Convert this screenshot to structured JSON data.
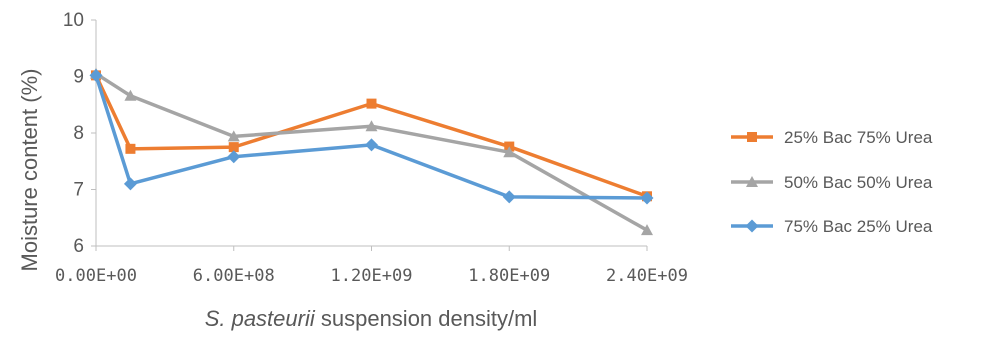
{
  "chart_data": {
    "type": "line",
    "xlabel_italic": "S. pasteurii",
    "xlabel_rest": " suspension density/ml",
    "ylabel": "Moisture content (%)",
    "xlim": [
      0,
      2400000000
    ],
    "ylim": [
      6,
      10
    ],
    "x_ticks": [
      0,
      600000000,
      1200000000,
      1800000000,
      2400000000
    ],
    "x_tick_labels": [
      "0.00E+00",
      "6.00E+08",
      "1.20E+09",
      "1.80E+09",
      "2.40E+09"
    ],
    "y_ticks": [
      6,
      7,
      8,
      9,
      10
    ],
    "y_tick_labels": [
      "6",
      "7",
      "8",
      "9",
      "10"
    ],
    "grid": false,
    "legend_position": "right",
    "x": [
      0,
      150000000,
      600000000,
      1200000000,
      1800000000,
      2400000000
    ],
    "series": [
      {
        "name": "25% Bac 75% Urea",
        "color": "#ED7D31",
        "marker": "square",
        "values": [
          9.02,
          7.72,
          7.75,
          8.52,
          7.76,
          6.88
        ]
      },
      {
        "name": "50% Bac 50% Urea",
        "color": "#A5A5A5",
        "marker": "triangle",
        "values": [
          9.05,
          8.66,
          7.94,
          8.12,
          7.66,
          6.28
        ]
      },
      {
        "name": "75% Bac 25% Urea",
        "color": "#5B9BD5",
        "marker": "diamond",
        "values": [
          9.02,
          7.1,
          7.58,
          7.79,
          6.87,
          6.85
        ]
      }
    ]
  }
}
